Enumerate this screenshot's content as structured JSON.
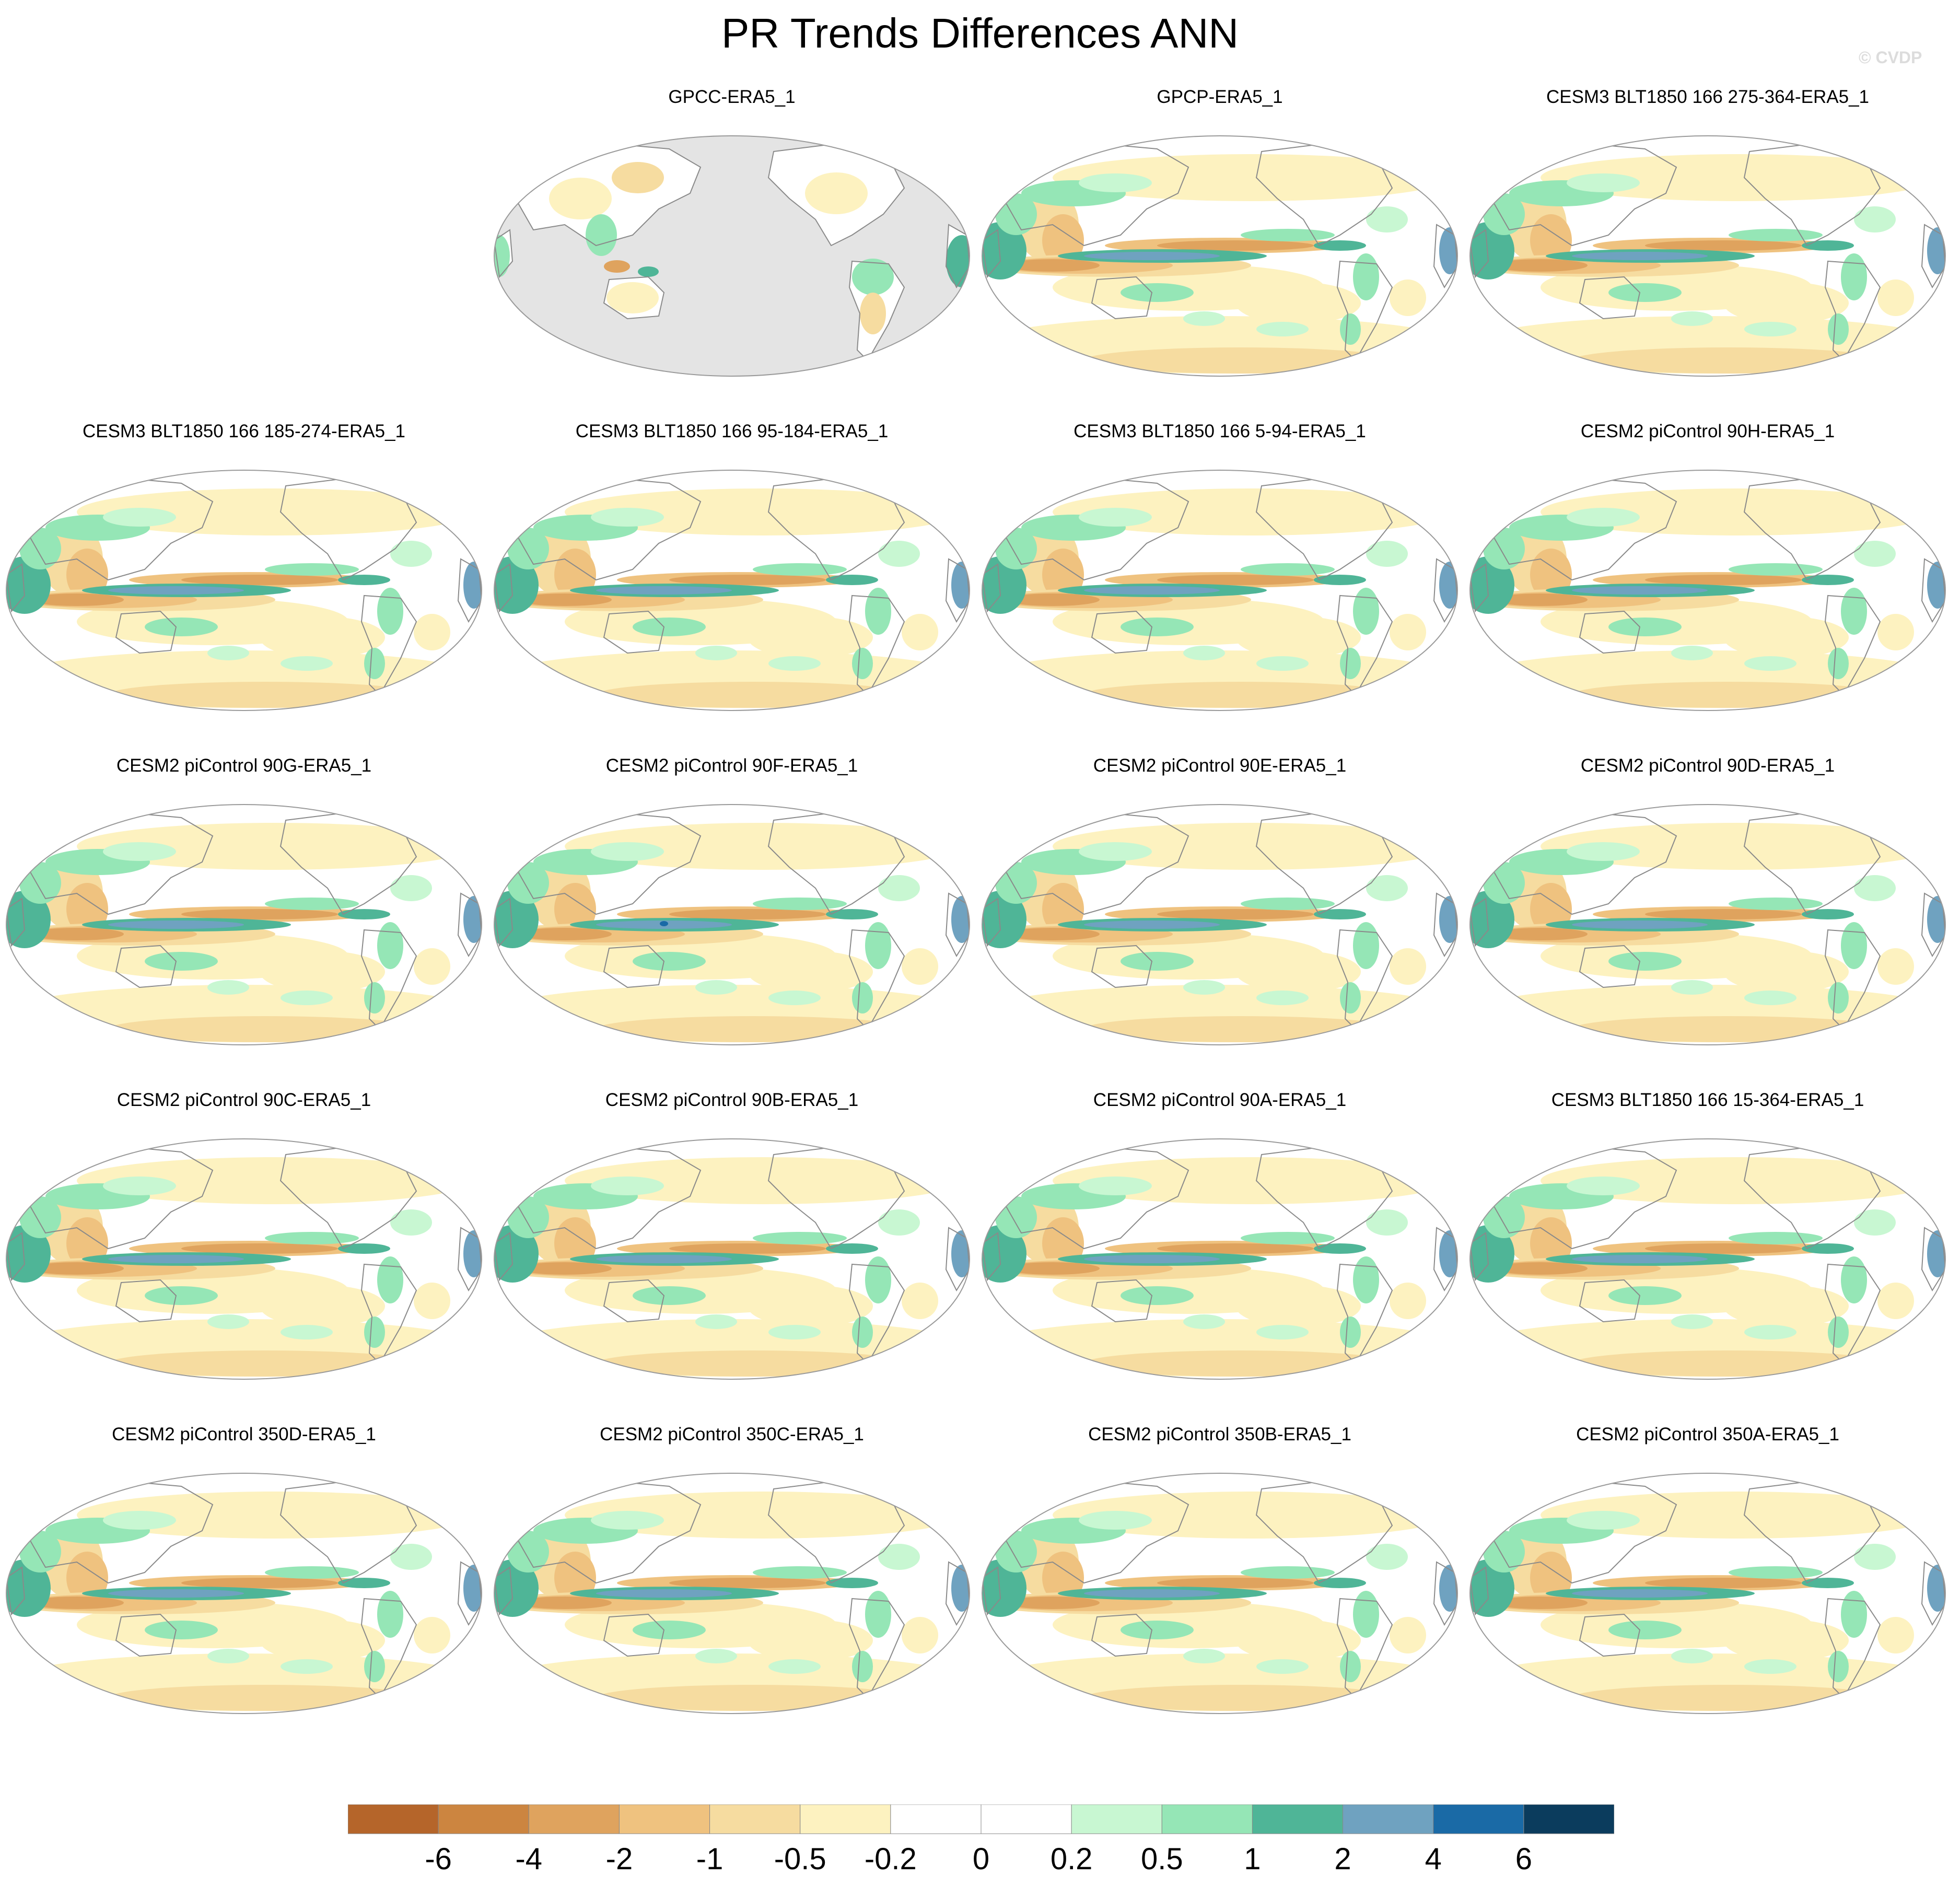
{
  "figure": {
    "title": "PR Trends Differences ANN",
    "watermark": "© CVDP"
  },
  "panels": [
    {
      "title": "GPCC-ERA5_1",
      "coverage": "land-only"
    },
    {
      "title": "GPCP-ERA5_1",
      "coverage": "global"
    },
    {
      "title": "CESM3 BLT1850 166 275-364-ERA5_1",
      "coverage": "global"
    },
    {
      "title": "CESM3 BLT1850 166 185-274-ERA5_1",
      "coverage": "global"
    },
    {
      "title": "CESM3 BLT1850 166 95-184-ERA5_1",
      "coverage": "global"
    },
    {
      "title": "CESM3 BLT1850 166 5-94-ERA5_1",
      "coverage": "global"
    },
    {
      "title": "CESM2 piControl 90H-ERA5_1",
      "coverage": "global"
    },
    {
      "title": "CESM2 piControl 90G-ERA5_1",
      "coverage": "global"
    },
    {
      "title": "CESM2 piControl 90F-ERA5_1",
      "coverage": "global"
    },
    {
      "title": "CESM2 piControl 90E-ERA5_1",
      "coverage": "global"
    },
    {
      "title": "CESM2 piControl 90D-ERA5_1",
      "coverage": "global"
    },
    {
      "title": "CESM2 piControl 90C-ERA5_1",
      "coverage": "global"
    },
    {
      "title": "CESM2 piControl 90B-ERA5_1",
      "coverage": "global"
    },
    {
      "title": "CESM2 piControl 90A-ERA5_1",
      "coverage": "global"
    },
    {
      "title": "CESM3 BLT1850 166 15-364-ERA5_1",
      "coverage": "global"
    },
    {
      "title": "CESM2 piControl 350D-ERA5_1",
      "coverage": "global"
    },
    {
      "title": "CESM2 piControl 350C-ERA5_1",
      "coverage": "global"
    },
    {
      "title": "CESM2 piControl 350B-ERA5_1",
      "coverage": "global"
    },
    {
      "title": "CESM2 piControl 350A-ERA5_1",
      "coverage": "global"
    }
  ],
  "colorbar": {
    "levels": [
      -6,
      -4,
      -2,
      -1,
      -0.5,
      -0.2,
      0,
      0.2,
      0.5,
      1,
      2,
      4,
      6
    ],
    "labels": [
      "-6",
      "-4",
      "-2",
      "-1",
      "-0.5",
      "-0.2",
      "0",
      "0.2",
      "0.5",
      "1",
      "2",
      "4",
      "6"
    ],
    "colors": [
      "#b5652a",
      "#cc8540",
      "#dfa35e",
      "#efc27f",
      "#f6dca0",
      "#fdf2c0",
      "#ffffff",
      "#ffffff",
      "#c8f7d2",
      "#95e6b6",
      "#4fb597",
      "#6fa2c0",
      "#1a6aa6",
      "#0b3c5d"
    ]
  },
  "map_style": {
    "land_mask_color": "#e4e4e4",
    "coastline_color": "#8a8a8a",
    "map_border_color": "#9a9a9a"
  }
}
